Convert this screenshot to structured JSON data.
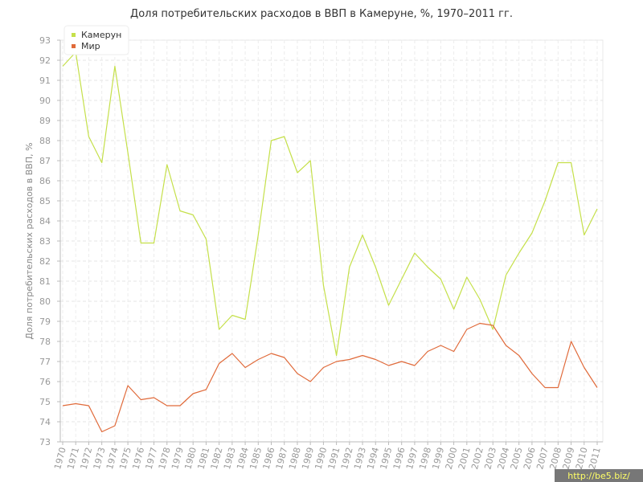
{
  "chart_data": {
    "type": "line",
    "title": "Доля потребительских расходов в ВВП в Камеруне, %, 1970–2011 гг.",
    "ylabel": "Доля потребительских расходов в ВВП, %",
    "xlabel": "",
    "ylim": [
      73,
      93
    ],
    "yticks": [
      73,
      74,
      75,
      76,
      77,
      78,
      79,
      80,
      81,
      82,
      83,
      84,
      85,
      86,
      87,
      88,
      89,
      90,
      91,
      92,
      93
    ],
    "grid": true,
    "legend_position": "top-left",
    "x": [
      "1970",
      "1971",
      "1972",
      "1973",
      "1974",
      "1975",
      "1976",
      "1977",
      "1978",
      "1979",
      "1980",
      "1981",
      "1982",
      "1983",
      "1984",
      "1985",
      "1986",
      "1987",
      "1988",
      "1989",
      "1990",
      "1991",
      "1992",
      "1993",
      "1994",
      "1995",
      "1996",
      "1997",
      "1998",
      "1999",
      "2000",
      "2001",
      "2002",
      "2003",
      "2004",
      "2005",
      "2006",
      "2007",
      "2008",
      "2009",
      "2010",
      "2011"
    ],
    "series": [
      {
        "name": "Камерун",
        "color": "#c5e04a",
        "values": [
          91.7,
          92.4,
          88.2,
          86.9,
          91.7,
          87.4,
          82.9,
          82.9,
          86.8,
          84.5,
          84.3,
          83.1,
          78.6,
          79.3,
          79.1,
          83.3,
          88.0,
          88.2,
          86.4,
          87.0,
          80.8,
          77.3,
          81.7,
          83.3,
          81.7,
          79.8,
          81.1,
          82.4,
          81.7,
          81.1,
          79.6,
          81.2,
          80.1,
          78.6,
          81.3,
          82.4,
          83.4,
          85.0,
          86.9,
          86.9,
          83.3,
          84.6
        ]
      },
      {
        "name": "Мир",
        "color": "#e06a3a",
        "values": [
          74.8,
          74.9,
          74.8,
          73.5,
          73.8,
          75.8,
          75.1,
          75.2,
          74.8,
          74.8,
          75.4,
          75.6,
          76.9,
          77.4,
          76.7,
          77.1,
          77.4,
          77.2,
          76.4,
          76.0,
          76.7,
          77.0,
          77.1,
          77.3,
          77.1,
          76.8,
          77.0,
          76.8,
          77.5,
          77.8,
          77.5,
          78.6,
          78.9,
          78.8,
          77.8,
          77.3,
          76.4,
          75.7,
          75.7,
          78.0,
          76.7,
          75.7
        ]
      }
    ]
  },
  "watermark": "http://be5.biz/"
}
